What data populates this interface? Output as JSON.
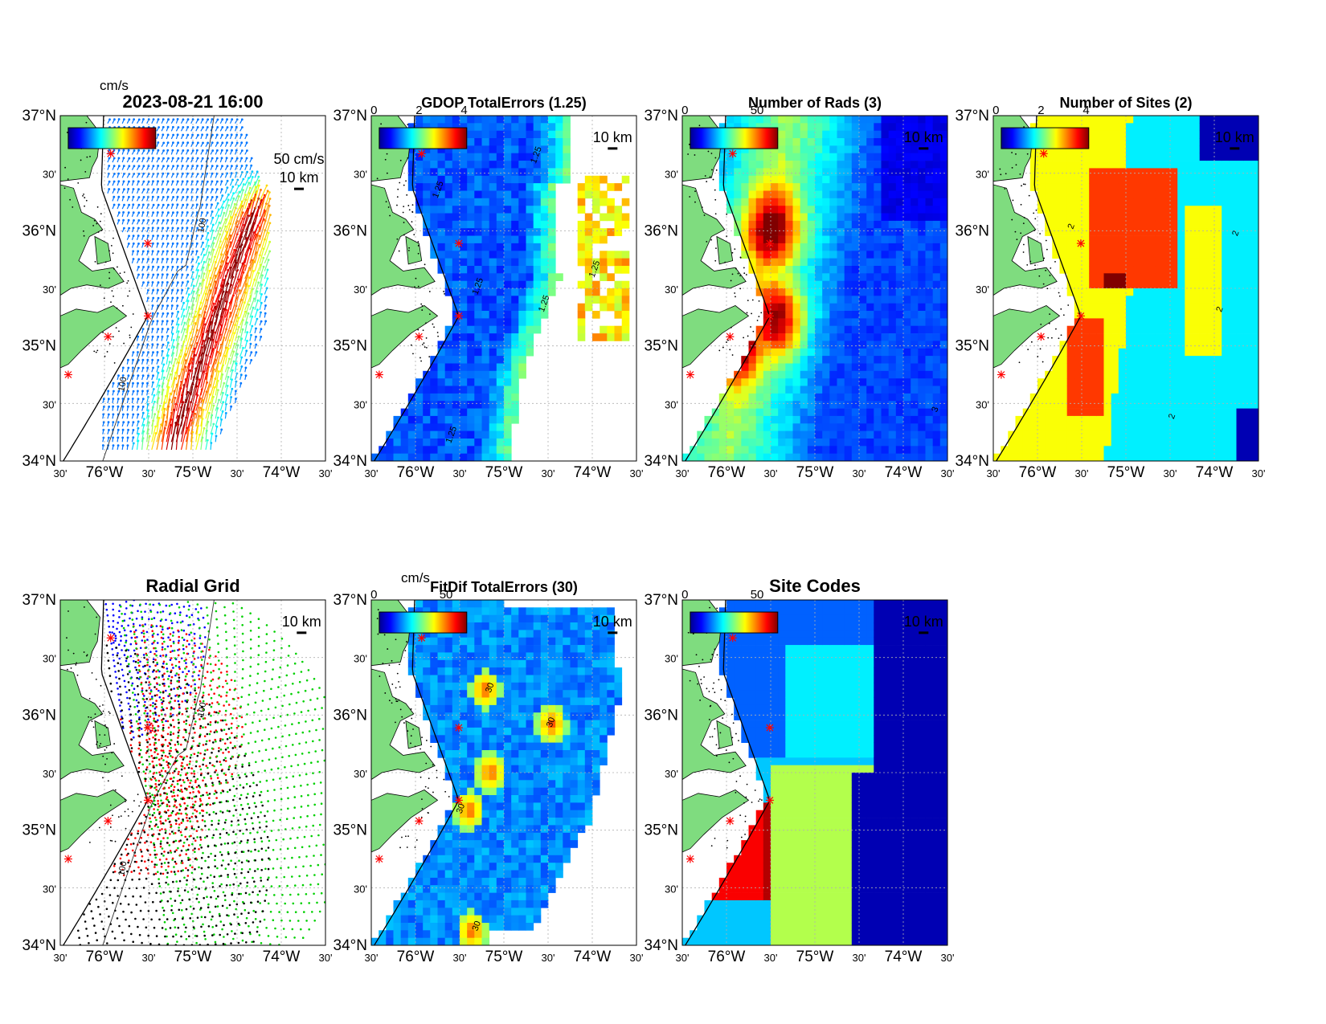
{
  "figure": {
    "timestamp": "2023-08-21 16:00",
    "lat_labels": [
      "37°N",
      "30'",
      "36°N",
      "30'",
      "35°N",
      "30'",
      "34°N"
    ],
    "lon_labels": [
      "30'",
      "76°W",
      "30'",
      "75°W",
      "30'",
      "74°W",
      "30'"
    ],
    "scale_label": "10 km",
    "vector_scale_label": "50 cm/s",
    "colors": {
      "land": "#7fdc7f",
      "coast": "#000000",
      "site_marker": "#ff0000",
      "grid": "#b0b0b0"
    }
  },
  "chart_data": [
    {
      "type": "heatmap",
      "id": "vectors",
      "title": "2023-08-21 16:00",
      "colorbar": {
        "unit": "cm/s",
        "ticks": []
      },
      "contour_labels": [
        "100",
        "100"
      ]
    },
    {
      "type": "heatmap",
      "id": "gdop",
      "title": "GDOP TotalErrors (1.25)",
      "colorbar": {
        "unit": "",
        "ticks": [
          "0",
          "2",
          "4"
        ]
      },
      "contour_labels": [
        "1.25",
        "1.25",
        "1.25",
        "1.25",
        "1.25",
        "1.25"
      ]
    },
    {
      "type": "heatmap",
      "id": "nrads",
      "title": "Number of Rads (3)",
      "colorbar": {
        "unit": "",
        "ticks": [
          "0",
          "50"
        ]
      },
      "contour_labels": [
        "3"
      ]
    },
    {
      "type": "heatmap",
      "id": "nsites",
      "title": "Number of Sites (2)",
      "colorbar": {
        "unit": "",
        "ticks": [
          "0",
          "2",
          "4"
        ]
      },
      "contour_labels": [
        "2",
        "2",
        "2",
        "2"
      ]
    },
    {
      "type": "scatter",
      "id": "radialgrid",
      "title": "Radial Grid",
      "contour_labels": [
        "100",
        "100"
      ]
    },
    {
      "type": "heatmap",
      "id": "fitdif",
      "title": "FitDif TotalErrors (30)",
      "colorbar": {
        "unit": "cm/s",
        "ticks": [
          "0",
          "50"
        ]
      },
      "contour_labels": [
        "30",
        "30",
        "30",
        "30"
      ]
    },
    {
      "type": "heatmap",
      "id": "sitecodes",
      "title": "Site Codes",
      "colorbar": {
        "unit": "",
        "ticks": [
          "0",
          "50"
        ]
      },
      "contour_labels": []
    }
  ]
}
